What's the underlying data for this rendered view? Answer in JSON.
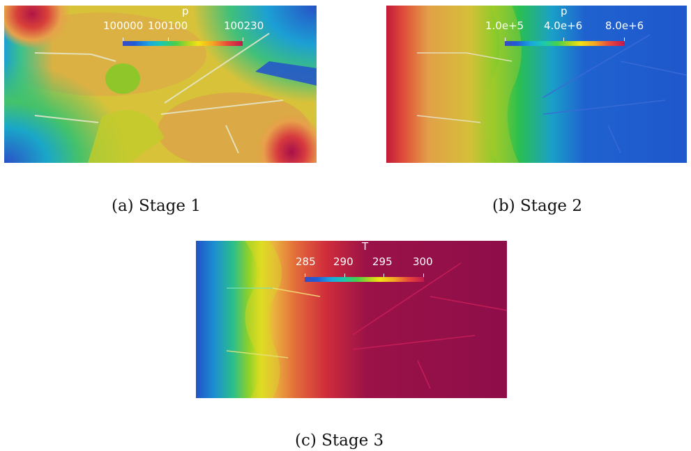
{
  "panels": [
    {
      "caption": "(a) Stage 1",
      "colorbar": {
        "title": "p",
        "ticks": [
          "100000",
          "100100",
          "100230"
        ]
      }
    },
    {
      "caption": "(b) Stage 2",
      "colorbar": {
        "title": "p",
        "ticks": [
          "1.0e+5",
          "4.0e+6",
          "8.0e+6"
        ]
      }
    },
    {
      "caption": "(c) Stage 3",
      "colorbar": {
        "title": "T",
        "ticks": [
          "285",
          "290",
          "295",
          "300"
        ]
      }
    }
  ]
}
